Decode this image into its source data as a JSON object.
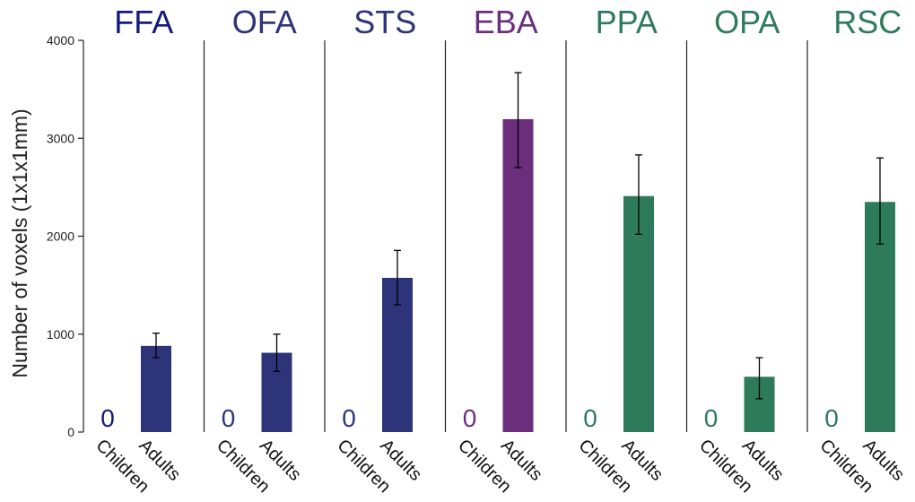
{
  "chart_data": {
    "type": "bar",
    "ylabel": "Number of voxels (1x1x1mm)",
    "ylim": [
      0,
      4000
    ],
    "yticks": [
      0,
      1000,
      2000,
      3000,
      4000
    ],
    "categories": [
      "Children",
      "Adults"
    ],
    "grid": false,
    "panels": [
      {
        "name": "FFA",
        "color": "#141a7a",
        "bar_color": "#2e3479",
        "values": [
          0,
          880
        ],
        "errors": [
          null,
          [
            760,
            1010
          ]
        ],
        "zero_label": "0"
      },
      {
        "name": "OFA",
        "color": "#2e3479",
        "bar_color": "#2e3479",
        "values": [
          0,
          810
        ],
        "errors": [
          null,
          [
            620,
            1000
          ]
        ],
        "zero_label": "0"
      },
      {
        "name": "STS",
        "color": "#2e3479",
        "bar_color": "#2e3479",
        "values": [
          0,
          1575
        ],
        "errors": [
          null,
          [
            1300,
            1855
          ]
        ],
        "zero_label": "0"
      },
      {
        "name": "EBA",
        "color": "#6b2e7c",
        "bar_color": "#6b2e7c",
        "values": [
          0,
          3195
        ],
        "errors": [
          null,
          [
            2700,
            3670
          ]
        ],
        "zero_label": "0"
      },
      {
        "name": "PPA",
        "color": "#2e7b5c",
        "bar_color": "#2e7b5c",
        "values": [
          0,
          2410
        ],
        "errors": [
          null,
          [
            2020,
            2830
          ]
        ],
        "zero_label": "0"
      },
      {
        "name": "OPA",
        "color": "#2e7b5c",
        "bar_color": "#2e7b5c",
        "values": [
          0,
          565
        ],
        "errors": [
          null,
          [
            340,
            760
          ]
        ],
        "zero_label": "0"
      },
      {
        "name": "RSC",
        "color": "#2e7b5c",
        "bar_color": "#2e7b5c",
        "values": [
          0,
          2350
        ],
        "errors": [
          null,
          [
            1920,
            2800
          ]
        ],
        "zero_label": "0"
      }
    ]
  }
}
